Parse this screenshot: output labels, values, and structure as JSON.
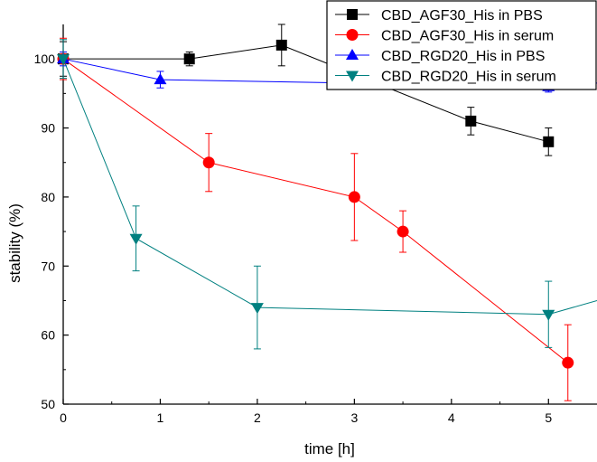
{
  "chart_data": {
    "type": "line",
    "title": "",
    "xlabel": "time [h]",
    "ylabel": "stability (%)",
    "xlim": [
      0,
      5.5
    ],
    "ylim": [
      50,
      105
    ],
    "xticks": [
      0,
      1,
      2,
      3,
      4,
      5
    ],
    "yticks": [
      50,
      60,
      70,
      80,
      90,
      100
    ],
    "grid": false,
    "legend_position": "top-right",
    "series": [
      {
        "name": "CBD_AGF30_His in PBS",
        "color": "#000000",
        "marker": "square",
        "x": [
          0,
          1.3,
          2.25,
          4.2,
          5
        ],
        "y": [
          100,
          100,
          102,
          91,
          88
        ],
        "err": [
          2.5,
          1,
          3,
          2,
          2
        ]
      },
      {
        "name": "CBD_AGF30_His in serum",
        "color": "#ff0000",
        "marker": "circle",
        "x": [
          0,
          1.5,
          3,
          3.5,
          5.2
        ],
        "y": [
          100,
          85,
          80,
          75,
          56
        ],
        "err": [
          3,
          4.2,
          6.3,
          3,
          5.5
        ]
      },
      {
        "name": "CBD_RGD20_His in PBS",
        "color": "#0000ff",
        "marker": "triangle-up",
        "x": [
          0,
          1,
          5,
          5.5
        ],
        "y": [
          100,
          97,
          96,
          96.5
        ],
        "err": [
          1,
          1.2,
          0.8,
          0
        ]
      },
      {
        "name": "CBD_RGD20_His in serum",
        "color": "#008080",
        "marker": "triangle-down",
        "x": [
          0,
          0.75,
          2,
          5,
          5.5
        ],
        "y": [
          100,
          74,
          64,
          63,
          65
        ],
        "err": [
          2.8,
          4.7,
          6,
          4.8,
          0
        ]
      }
    ]
  }
}
